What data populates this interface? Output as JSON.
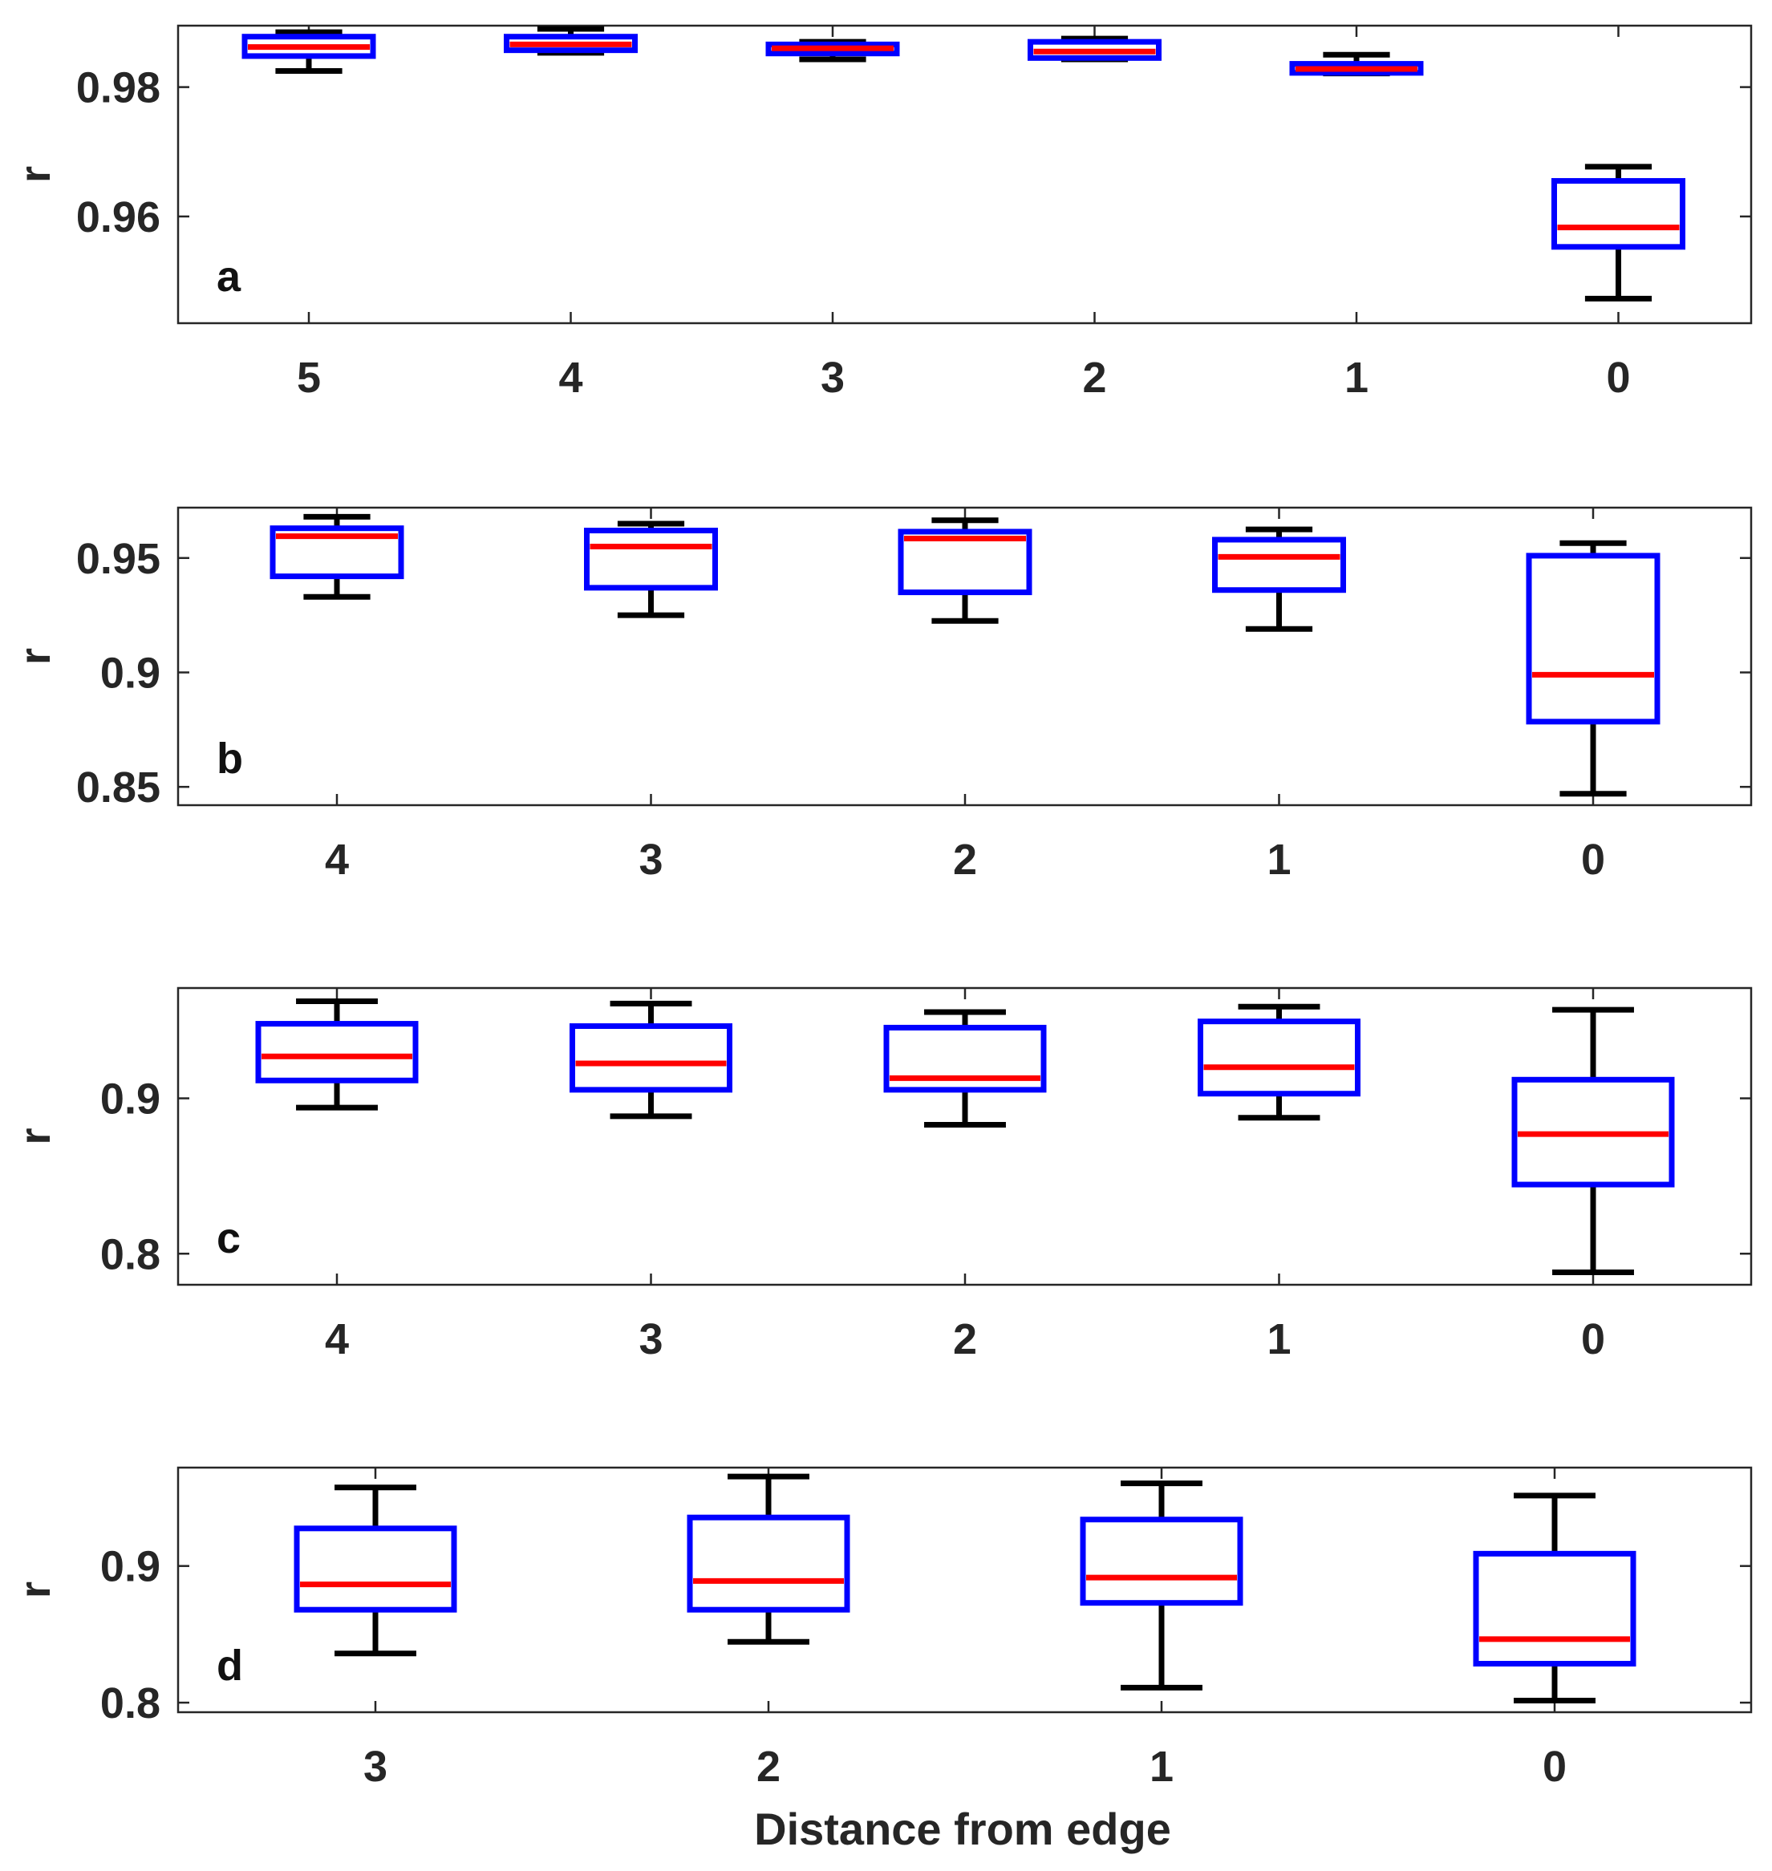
{
  "xlabel": "Distance from edge",
  "colors": {
    "box": "#0000ff",
    "median": "#ff0000",
    "whisker": "#000000",
    "axis": "#262626",
    "grid_tick": "#262626"
  },
  "chart_data": [
    {
      "type": "box",
      "panel": "a",
      "ylabel": "r",
      "ylim": [
        0.9435,
        0.9895
      ],
      "yticks": [
        0.96,
        0.98
      ],
      "ytick_labels": [
        "0.96",
        "0.98"
      ],
      "categories": [
        "5",
        "4",
        "3",
        "2",
        "1",
        "0"
      ],
      "boxes": [
        {
          "whisker_low": 0.9825,
          "q1": 0.9848,
          "median": 0.9862,
          "q3": 0.9878,
          "whisker_high": 0.9885
        },
        {
          "whisker_low": 0.9853,
          "q1": 0.9857,
          "median": 0.9866,
          "q3": 0.9878,
          "whisker_high": 0.989
        },
        {
          "whisker_low": 0.9843,
          "q1": 0.9852,
          "median": 0.986,
          "q3": 0.9866,
          "whisker_high": 0.987
        },
        {
          "whisker_low": 0.9843,
          "q1": 0.9845,
          "median": 0.9855,
          "q3": 0.987,
          "whisker_high": 0.9875
        },
        {
          "whisker_low": 0.9821,
          "q1": 0.9822,
          "median": 0.9828,
          "q3": 0.9836,
          "whisker_high": 0.985
        },
        {
          "whisker_low": 0.9473,
          "q1": 0.9553,
          "median": 0.9583,
          "q3": 0.9655,
          "whisker_high": 0.9677
        }
      ]
    },
    {
      "type": "box",
      "panel": "b",
      "ylabel": "r",
      "ylim": [
        0.842,
        0.972
      ],
      "yticks": [
        0.85,
        0.9,
        0.95
      ],
      "ytick_labels": [
        "0.85",
        "0.9",
        "0.95"
      ],
      "categories": [
        "4",
        "3",
        "2",
        "1",
        "0"
      ],
      "boxes": [
        {
          "whisker_low": 0.933,
          "q1": 0.942,
          "median": 0.9595,
          "q3": 0.963,
          "whisker_high": 0.968
        },
        {
          "whisker_low": 0.925,
          "q1": 0.937,
          "median": 0.955,
          "q3": 0.962,
          "whisker_high": 0.965
        },
        {
          "whisker_low": 0.9225,
          "q1": 0.935,
          "median": 0.9585,
          "q3": 0.9615,
          "whisker_high": 0.9665
        },
        {
          "whisker_low": 0.919,
          "q1": 0.936,
          "median": 0.9505,
          "q3": 0.958,
          "whisker_high": 0.9625
        },
        {
          "whisker_low": 0.847,
          "q1": 0.8785,
          "median": 0.899,
          "q3": 0.951,
          "whisker_high": 0.9565
        }
      ]
    },
    {
      "type": "box",
      "panel": "c",
      "ylabel": "r",
      "ylim": [
        0.78,
        0.971
      ],
      "yticks": [
        0.8,
        0.9
      ],
      "ytick_labels": [
        "0.8",
        "0.9"
      ],
      "categories": [
        "4",
        "3",
        "2",
        "1",
        "0"
      ],
      "boxes": [
        {
          "whisker_low": 0.894,
          "q1": 0.9115,
          "median": 0.927,
          "q3": 0.948,
          "whisker_high": 0.9625
        },
        {
          "whisker_low": 0.8885,
          "q1": 0.9055,
          "median": 0.9225,
          "q3": 0.9465,
          "whisker_high": 0.961
        },
        {
          "whisker_low": 0.883,
          "q1": 0.9055,
          "median": 0.913,
          "q3": 0.9455,
          "whisker_high": 0.9555
        },
        {
          "whisker_low": 0.8875,
          "q1": 0.903,
          "median": 0.92,
          "q3": 0.9495,
          "whisker_high": 0.959
        },
        {
          "whisker_low": 0.788,
          "q1": 0.8445,
          "median": 0.877,
          "q3": 0.912,
          "whisker_high": 0.957
        }
      ]
    },
    {
      "type": "box",
      "panel": "d",
      "ylabel": "r",
      "ylim": [
        0.793,
        0.972
      ],
      "yticks": [
        0.8,
        0.9
      ],
      "ytick_labels": [
        "0.8",
        "0.9"
      ],
      "categories": [
        "3",
        "2",
        "1",
        "0"
      ],
      "boxes": [
        {
          "whisker_low": 0.836,
          "q1": 0.868,
          "median": 0.8865,
          "q3": 0.9275,
          "whisker_high": 0.9575
        },
        {
          "whisker_low": 0.8445,
          "q1": 0.868,
          "median": 0.889,
          "q3": 0.9355,
          "whisker_high": 0.9655
        },
        {
          "whisker_low": 0.811,
          "q1": 0.873,
          "median": 0.8915,
          "q3": 0.934,
          "whisker_high": 0.9605
        },
        {
          "whisker_low": 0.8015,
          "q1": 0.8285,
          "median": 0.8465,
          "q3": 0.909,
          "whisker_high": 0.9515
        }
      ]
    }
  ]
}
